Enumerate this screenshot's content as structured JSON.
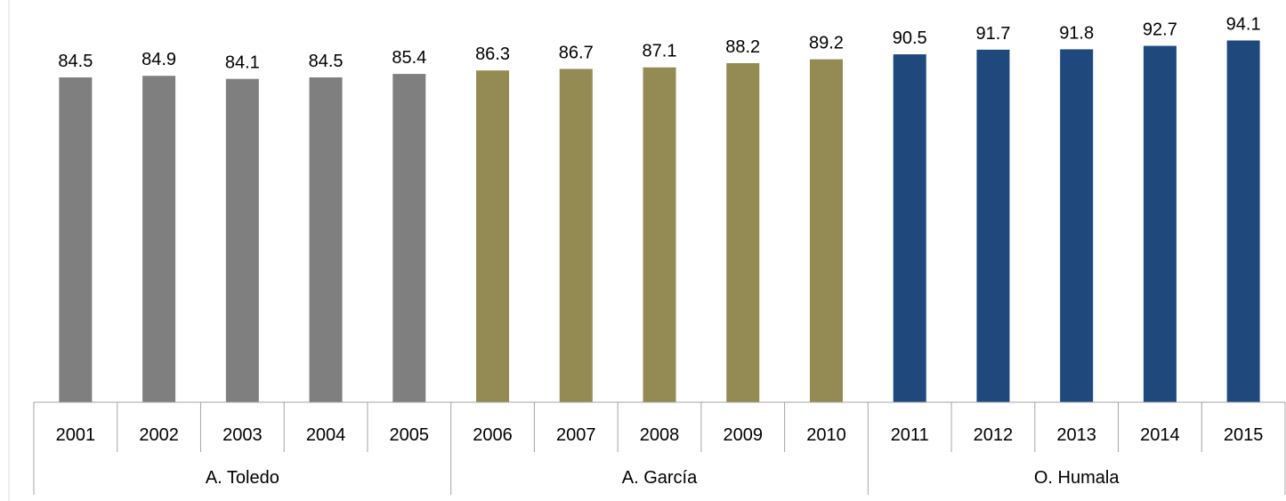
{
  "chart_data": {
    "type": "bar",
    "categories": [
      "2001",
      "2002",
      "2003",
      "2004",
      "2005",
      "2006",
      "2007",
      "2008",
      "2009",
      "2010",
      "2011",
      "2012",
      "2013",
      "2014",
      "2015"
    ],
    "values": [
      84.5,
      84.9,
      84.1,
      84.5,
      85.4,
      86.3,
      86.7,
      87.1,
      88.2,
      89.2,
      90.5,
      91.7,
      91.8,
      92.7,
      94.1
    ],
    "value_labels": [
      "84.5",
      "84.9",
      "84.1",
      "84.5",
      "85.4",
      "86.3",
      "86.7",
      "87.1",
      "88.2",
      "89.2",
      "90.5",
      "91.7",
      "91.8",
      "92.7",
      "94.1"
    ],
    "groups": [
      {
        "label": "A. Toledo",
        "count": 5,
        "color": "#7f7f7f"
      },
      {
        "label": "A. García",
        "count": 5,
        "color": "#948a54"
      },
      {
        "label": "O. Humala",
        "count": 5,
        "color": "#1f497d"
      }
    ],
    "ylim": [
      0,
      100
    ],
    "grid": false,
    "legend": "none",
    "title": "",
    "xlabel": "",
    "ylabel": ""
  }
}
